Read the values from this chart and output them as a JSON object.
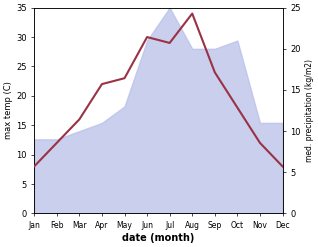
{
  "months": [
    "Jan",
    "Feb",
    "Mar",
    "Apr",
    "May",
    "Jun",
    "Jul",
    "Aug",
    "Sep",
    "Oct",
    "Nov",
    "Dec"
  ],
  "month_x": [
    0,
    1,
    2,
    3,
    4,
    5,
    6,
    7,
    8,
    9,
    10,
    11
  ],
  "temperature": [
    8,
    12,
    16,
    22,
    23,
    30,
    29,
    34,
    24,
    18,
    12,
    8
  ],
  "precipitation": [
    9,
    9,
    10,
    11,
    13,
    21,
    25,
    20,
    20,
    21,
    11,
    11
  ],
  "temp_color": "#993344",
  "precip_fill_color": "#b8c0e8",
  "temp_ylim": [
    0,
    35
  ],
  "precip_ylim": [
    0,
    25
  ],
  "temp_yticks": [
    0,
    5,
    10,
    15,
    20,
    25,
    30,
    35
  ],
  "precip_yticks": [
    0,
    5,
    10,
    15,
    20,
    25
  ],
  "xlabel": "date (month)",
  "ylabel_left": "max temp (C)",
  "ylabel_right": "med. precipitation (kg/m2)",
  "bg_color": "#ffffff"
}
